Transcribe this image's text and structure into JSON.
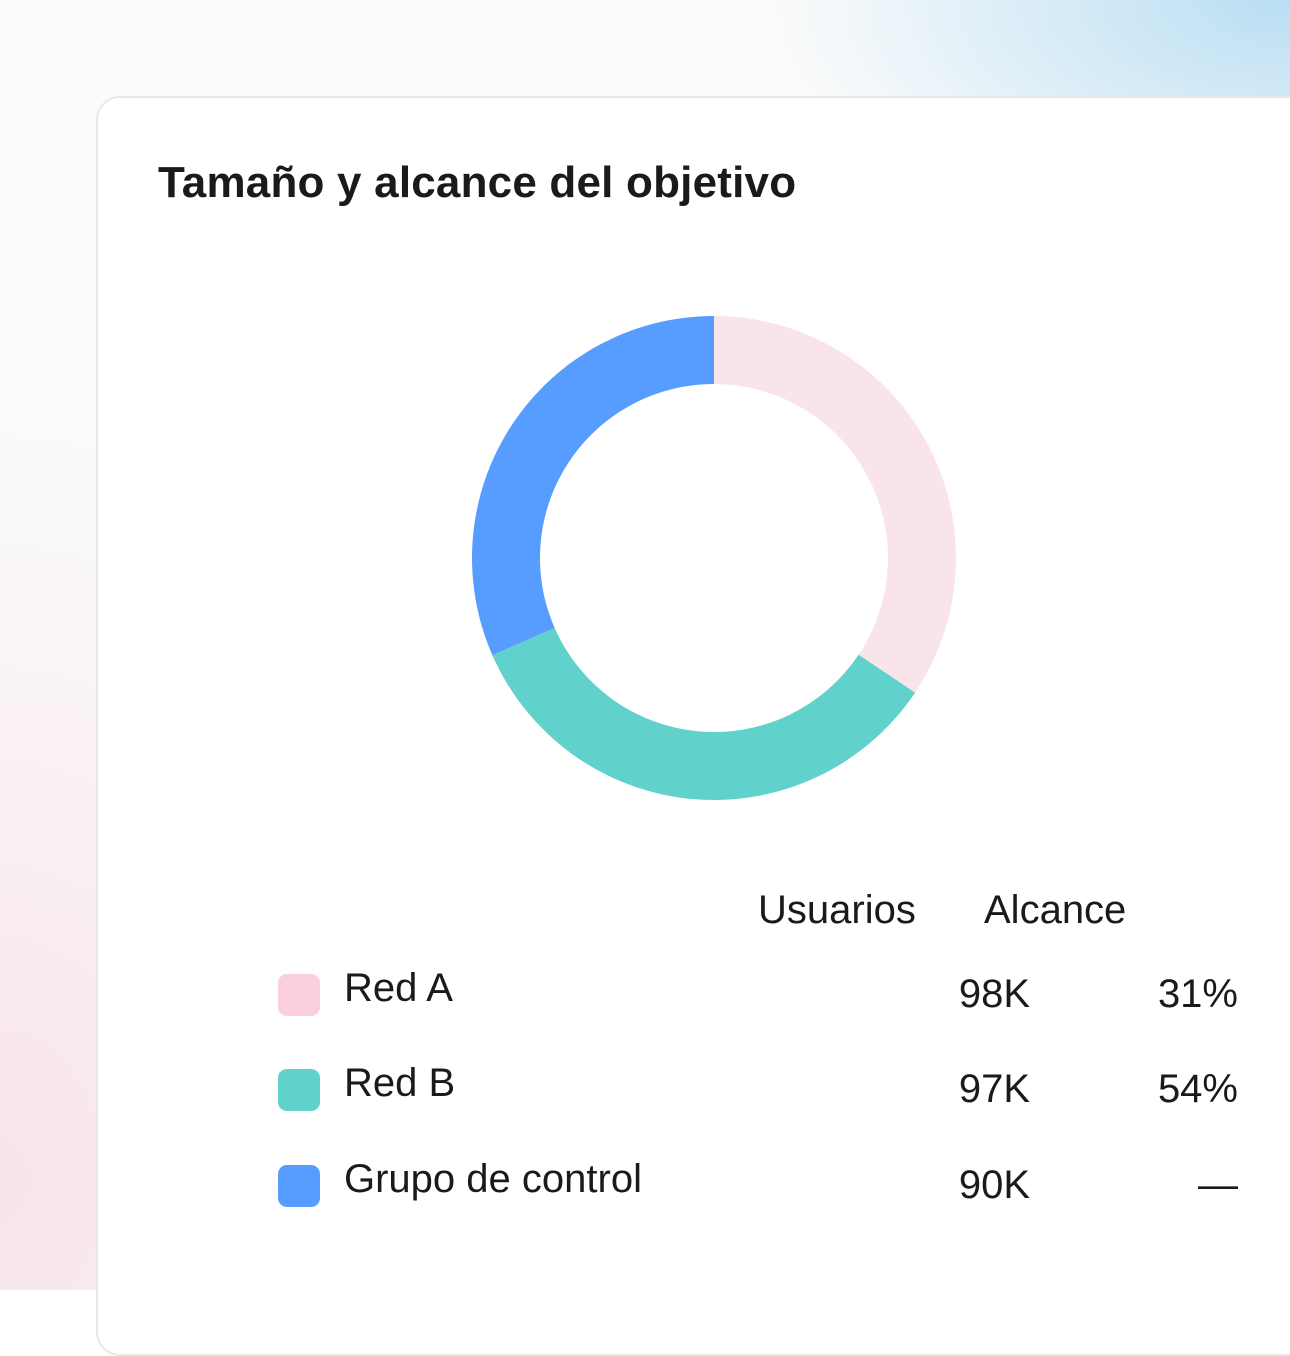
{
  "card": {
    "title": "Tamaño y alcance del objetivo"
  },
  "table": {
    "headers": {
      "users": "Usuarios",
      "reach": "Alcance"
    },
    "rows": [
      {
        "label": "Red A",
        "users": "98K",
        "reach": "31%",
        "color": "#f9e4ea",
        "swatch_color": "#fbcfdb"
      },
      {
        "label": "Red B",
        "users": "97K",
        "reach": "54%",
        "color": "#61d1cb",
        "swatch_color": "#61d1cb"
      },
      {
        "label": "Grupo de control",
        "users": "90K",
        "reach": "—",
        "color": "#579dff",
        "swatch_color": "#579dff"
      }
    ]
  },
  "chart_data": {
    "type": "pie",
    "donut": true,
    "start_angle": "12 o'clock",
    "direction": "clockwise",
    "labels": [
      "Red A",
      "Red B",
      "Grupo de control"
    ],
    "values": [
      98,
      97,
      90
    ],
    "unit": "K usuarios",
    "colors": [
      "#f9e4ea",
      "#61d1cb",
      "#579dff"
    ],
    "title": "Tamaño y alcance del objetivo"
  }
}
